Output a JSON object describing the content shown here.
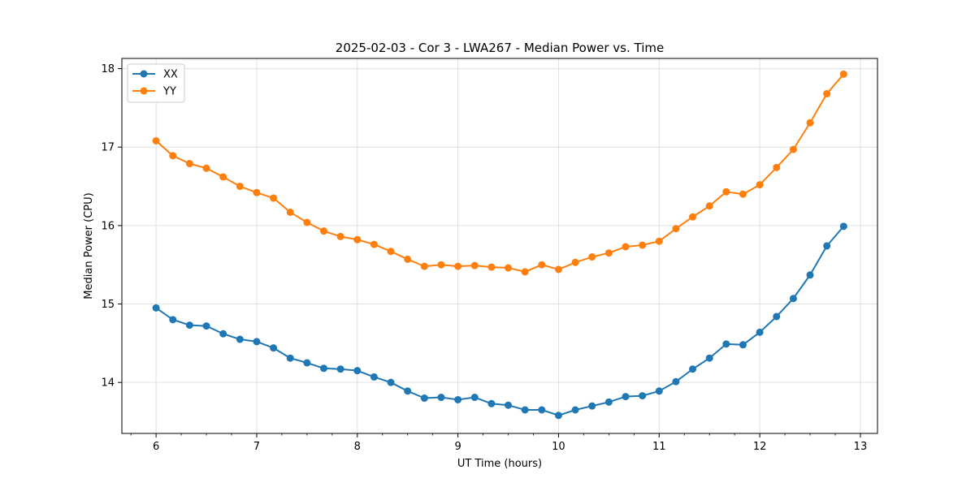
{
  "chart_data": {
    "type": "line",
    "title": "2025-02-03 - Cor 3 - LWA267 - Median Power vs. Time",
    "xlabel": "UT Time (hours)",
    "ylabel": "Median Power (CPU)",
    "xlim": [
      5.66,
      13.17
    ],
    "ylim": [
      13.35,
      18.13
    ],
    "xticks": [
      6,
      7,
      8,
      9,
      10,
      11,
      12,
      13
    ],
    "yticks": [
      14,
      15,
      16,
      17,
      18
    ],
    "grid": true,
    "legend_position": "top-left",
    "x": [
      6.0,
      6.1667,
      6.3333,
      6.5,
      6.6667,
      6.8333,
      7.0,
      7.1667,
      7.3333,
      7.5,
      7.6667,
      7.8333,
      8.0,
      8.1667,
      8.3333,
      8.5,
      8.6667,
      8.8333,
      9.0,
      9.1667,
      9.3333,
      9.5,
      9.6667,
      9.8333,
      10.0,
      10.1667,
      10.3333,
      10.5,
      10.6667,
      10.8333,
      11.0,
      11.1667,
      11.3333,
      11.5,
      11.6667,
      11.8333,
      12.0,
      12.1667,
      12.3333,
      12.5,
      12.6667,
      12.8333
    ],
    "series": [
      {
        "name": "XX",
        "color": "#1f77b4",
        "values": [
          14.95,
          14.8,
          14.73,
          14.72,
          14.62,
          14.55,
          14.52,
          14.44,
          14.31,
          14.25,
          14.18,
          14.17,
          14.15,
          14.07,
          14.0,
          13.89,
          13.8,
          13.81,
          13.78,
          13.81,
          13.73,
          13.71,
          13.65,
          13.65,
          13.58,
          13.65,
          13.7,
          13.75,
          13.82,
          13.83,
          13.89,
          14.01,
          14.17,
          14.31,
          14.49,
          14.48,
          14.64,
          14.84,
          15.07,
          15.37,
          15.74,
          15.99
        ]
      },
      {
        "name": "YY",
        "color": "#ff7f0e",
        "values": [
          17.08,
          16.89,
          16.79,
          16.73,
          16.62,
          16.5,
          16.42,
          16.35,
          16.17,
          16.04,
          15.93,
          15.86,
          15.82,
          15.76,
          15.67,
          15.57,
          15.48,
          15.5,
          15.48,
          15.49,
          15.47,
          15.46,
          15.41,
          15.5,
          15.44,
          15.53,
          15.6,
          15.65,
          15.73,
          15.75,
          15.8,
          15.96,
          16.11,
          16.25,
          16.43,
          16.4,
          16.52,
          16.74,
          16.97,
          17.31,
          17.68,
          17.93
        ]
      }
    ]
  }
}
